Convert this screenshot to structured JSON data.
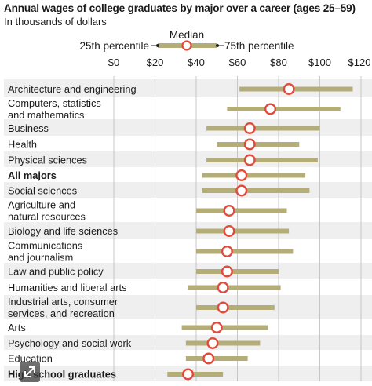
{
  "chart_data": {
    "type": "dot-range",
    "title": "Annual wages of college graduates by major over a career (ages 25–59)",
    "subtitle": "In thousands of dollars",
    "legend": {
      "median": "Median",
      "p25": "25th percentile",
      "p75": "75th percentile",
      "placement": "top-center"
    },
    "x_ticks": [
      "$0",
      "$20",
      "$40",
      "$60",
      "$80",
      "$100",
      "$120"
    ],
    "x_tick_values": [
      0,
      20,
      40,
      60,
      80,
      100,
      120
    ],
    "xlim": [
      0,
      120
    ],
    "grid": true,
    "colors": {
      "bar": "#b5ad78",
      "median_stroke": "#e14b3b",
      "median_fill": "#ffffff",
      "row_shade": "#efefef",
      "grid": "#bcbcbc"
    },
    "rows": [
      {
        "label": [
          "Architecture and engineering"
        ],
        "p25": 61,
        "median": 85,
        "p75": 116,
        "bold": false
      },
      {
        "label": [
          "Computers, statistics",
          "and mathematics"
        ],
        "p25": 55,
        "median": 76,
        "p75": 110,
        "bold": false
      },
      {
        "label": [
          "Business"
        ],
        "p25": 45,
        "median": 66,
        "p75": 100,
        "bold": false
      },
      {
        "label": [
          "Health"
        ],
        "p25": 50,
        "median": 66,
        "p75": 90,
        "bold": false
      },
      {
        "label": [
          "Physical sciences"
        ],
        "p25": 45,
        "median": 66,
        "p75": 99,
        "bold": false
      },
      {
        "label": [
          "All majors"
        ],
        "p25": 43,
        "median": 62,
        "p75": 93,
        "bold": true
      },
      {
        "label": [
          "Social sciences"
        ],
        "p25": 43,
        "median": 62,
        "p75": 95,
        "bold": false
      },
      {
        "label": [
          "Agriculture and",
          "natural resources"
        ],
        "p25": 40,
        "median": 56,
        "p75": 84,
        "bold": false
      },
      {
        "label": [
          "Biology and life sciences"
        ],
        "p25": 40,
        "median": 56,
        "p75": 85,
        "bold": false
      },
      {
        "label": [
          "Communications",
          "and journalism"
        ],
        "p25": 40,
        "median": 55,
        "p75": 87,
        "bold": false
      },
      {
        "label": [
          "Law and public policy"
        ],
        "p25": 40,
        "median": 55,
        "p75": 80,
        "bold": false
      },
      {
        "label": [
          "Humanities and liberal arts"
        ],
        "p25": 36,
        "median": 53,
        "p75": 81,
        "bold": false
      },
      {
        "label": [
          "Industrial arts, consumer",
          "services, and recreation"
        ],
        "p25": 40,
        "median": 53,
        "p75": 78,
        "bold": false
      },
      {
        "label": [
          "Arts"
        ],
        "p25": 33,
        "median": 50,
        "p75": 75,
        "bold": false
      },
      {
        "label": [
          "Psychology and social work"
        ],
        "p25": 35,
        "median": 48,
        "p75": 71,
        "bold": false
      },
      {
        "label": [
          "Education"
        ],
        "p25": 35,
        "median": 46,
        "p75": 65,
        "bold": false
      },
      {
        "label": [
          "High school graduates"
        ],
        "p25": 26,
        "median": 36,
        "p75": 53,
        "bold": true
      }
    ]
  }
}
